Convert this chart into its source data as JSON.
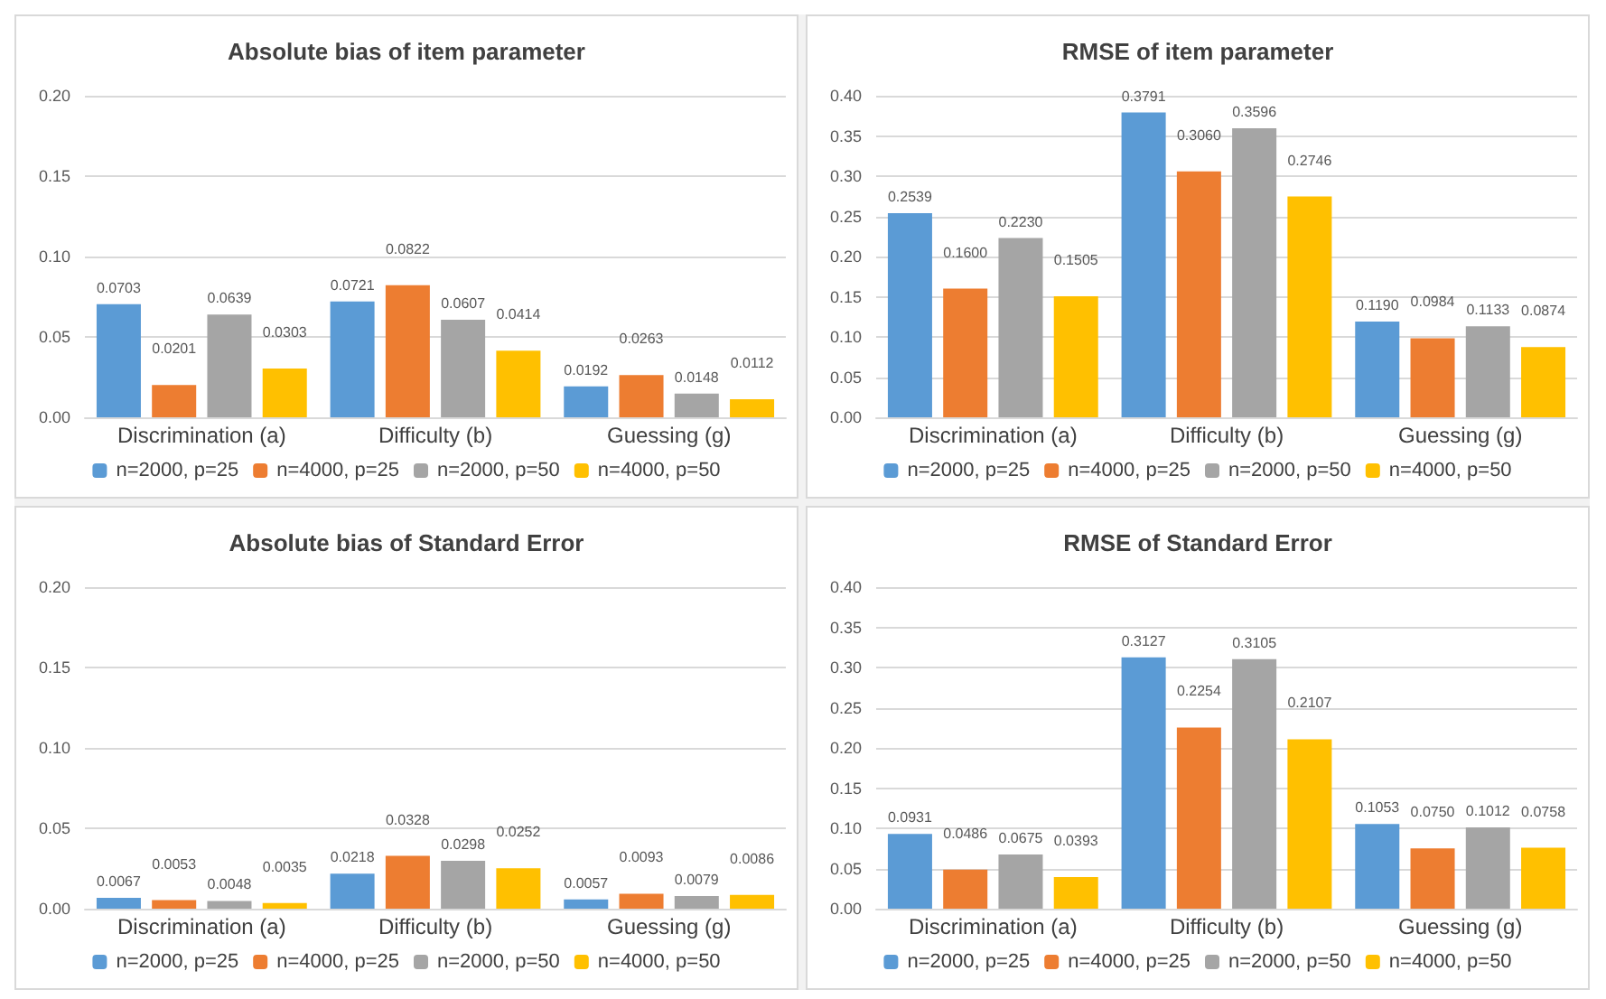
{
  "chart_data": [
    {
      "type": "bar",
      "title": "Absolute bias of item parameter",
      "categories": [
        "Discrimination (a)",
        "Difficulty (b)",
        "Guessing (g)"
      ],
      "ylim": [
        0,
        0.2
      ],
      "yticks": [
        {
          "value": 0,
          "label": "0.00"
        },
        {
          "value": 0.05,
          "label": "0.05"
        },
        {
          "value": 0.1,
          "label": "0.10"
        },
        {
          "value": 0.15,
          "label": "0.15"
        },
        {
          "value": 0.2,
          "label": "0.20"
        }
      ],
      "grid": "y",
      "legend": "bottom",
      "series": [
        {
          "name": "n=2000, p=25",
          "color": "#5b9bd5",
          "values": [
            0.0703,
            0.0721,
            0.0192
          ],
          "value_labels": [
            "0.0703",
            "0.0721",
            "0.0192"
          ]
        },
        {
          "name": "n=4000, p=25",
          "color": "#ed7d31",
          "values": [
            0.0201,
            0.0822,
            0.0263
          ],
          "value_labels": [
            "0.0201",
            "0.0822",
            "0.0263"
          ]
        },
        {
          "name": "n=2000, p=50",
          "color": "#a5a5a5",
          "values": [
            0.0639,
            0.0607,
            0.0148
          ],
          "value_labels": [
            "0.0639",
            "0.0607",
            "0.0148"
          ]
        },
        {
          "name": "n=4000, p=50",
          "color": "#ffc000",
          "values": [
            0.0303,
            0.0414,
            0.0112
          ],
          "value_labels": [
            "0.0303",
            "0.0414",
            "0.0112"
          ]
        }
      ]
    },
    {
      "type": "bar",
      "title": "RMSE of item parameter",
      "categories": [
        "Discrimination (a)",
        "Difficulty (b)",
        "Guessing (g)"
      ],
      "ylim": [
        0,
        0.4
      ],
      "yticks": [
        {
          "value": 0,
          "label": "0.00"
        },
        {
          "value": 0.05,
          "label": "0.05"
        },
        {
          "value": 0.1,
          "label": "0.10"
        },
        {
          "value": 0.15,
          "label": "0.15"
        },
        {
          "value": 0.2,
          "label": "0.20"
        },
        {
          "value": 0.25,
          "label": "0.25"
        },
        {
          "value": 0.3,
          "label": "0.30"
        },
        {
          "value": 0.35,
          "label": "0.35"
        },
        {
          "value": 0.4,
          "label": "0.40"
        }
      ],
      "grid": "y",
      "legend": "bottom",
      "series": [
        {
          "name": "n=2000, p=25",
          "color": "#5b9bd5",
          "values": [
            0.2539,
            0.3791,
            0.119
          ],
          "value_labels": [
            "0.2539",
            "0.3791",
            "0.1190"
          ]
        },
        {
          "name": "n=4000, p=25",
          "color": "#ed7d31",
          "values": [
            0.16,
            0.306,
            0.0984
          ],
          "value_labels": [
            "0.1600",
            "0.3060",
            "0.0984"
          ]
        },
        {
          "name": "n=2000, p=50",
          "color": "#a5a5a5",
          "values": [
            0.223,
            0.3596,
            0.1133
          ],
          "value_labels": [
            "0.2230",
            "0.3596",
            "0.1133"
          ]
        },
        {
          "name": "n=4000, p=50",
          "color": "#ffc000",
          "values": [
            0.1505,
            0.2746,
            0.0874
          ],
          "value_labels": [
            "0.1505",
            "0.2746",
            "0.0874"
          ]
        }
      ]
    },
    {
      "type": "bar",
      "title": "Absolute bias of Standard Error",
      "categories": [
        "Discrimination (a)",
        "Difficulty (b)",
        "Guessing (g)"
      ],
      "ylim": [
        0,
        0.2
      ],
      "yticks": [
        {
          "value": 0,
          "label": "0.00"
        },
        {
          "value": 0.05,
          "label": "0.05"
        },
        {
          "value": 0.1,
          "label": "0.10"
        },
        {
          "value": 0.15,
          "label": "0.15"
        },
        {
          "value": 0.2,
          "label": "0.20"
        }
      ],
      "grid": "y",
      "legend": "bottom",
      "series": [
        {
          "name": "n=2000, p=25",
          "color": "#5b9bd5",
          "values": [
            0.0067,
            0.0218,
            0.0057
          ],
          "value_labels": [
            "0.0067",
            "0.0218",
            "0.0057"
          ]
        },
        {
          "name": "n=4000, p=25",
          "color": "#ed7d31",
          "values": [
            0.0053,
            0.0328,
            0.0093
          ],
          "value_labels": [
            "0.0053",
            "0.0328",
            "0.0093"
          ]
        },
        {
          "name": "n=2000, p=50",
          "color": "#a5a5a5",
          "values": [
            0.0048,
            0.0298,
            0.0079
          ],
          "value_labels": [
            "0.0048",
            "0.0298",
            "0.0079"
          ]
        },
        {
          "name": "n=4000, p=50",
          "color": "#ffc000",
          "values": [
            0.0035,
            0.0252,
            0.0086
          ],
          "value_labels": [
            "0.0035",
            "0.0252",
            "0.0086"
          ]
        }
      ]
    },
    {
      "type": "bar",
      "title": "RMSE of Standard Error",
      "categories": [
        "Discrimination (a)",
        "Difficulty (b)",
        "Guessing (g)"
      ],
      "ylim": [
        0,
        0.4
      ],
      "yticks": [
        {
          "value": 0,
          "label": "0.00"
        },
        {
          "value": 0.05,
          "label": "0.05"
        },
        {
          "value": 0.1,
          "label": "0.10"
        },
        {
          "value": 0.15,
          "label": "0.15"
        },
        {
          "value": 0.2,
          "label": "0.20"
        },
        {
          "value": 0.25,
          "label": "0.25"
        },
        {
          "value": 0.3,
          "label": "0.30"
        },
        {
          "value": 0.35,
          "label": "0.35"
        },
        {
          "value": 0.4,
          "label": "0.40"
        }
      ],
      "grid": "y",
      "legend": "bottom",
      "series": [
        {
          "name": "n=2000, p=25",
          "color": "#5b9bd5",
          "values": [
            0.0931,
            0.3127,
            0.1053
          ],
          "value_labels": [
            "0.0931",
            "0.3127",
            "0.1053"
          ]
        },
        {
          "name": "n=4000, p=25",
          "color": "#ed7d31",
          "values": [
            0.0486,
            0.2254,
            0.075
          ],
          "value_labels": [
            "0.0486",
            "0.2254",
            "0.0750"
          ]
        },
        {
          "name": "n=2000, p=50",
          "color": "#a5a5a5",
          "values": [
            0.0675,
            0.3105,
            0.1012
          ],
          "value_labels": [
            "0.0675",
            "0.3105",
            "0.1012"
          ]
        },
        {
          "name": "n=4000, p=50",
          "color": "#ffc000",
          "values": [
            0.0393,
            0.2107,
            0.0758
          ],
          "value_labels": [
            "0.0393",
            "0.2107",
            "0.0758"
          ]
        }
      ]
    }
  ]
}
